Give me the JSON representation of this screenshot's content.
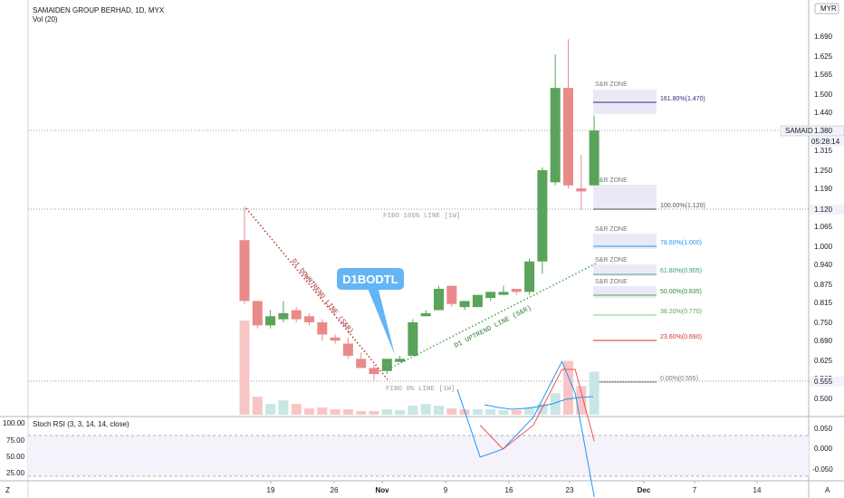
{
  "header": {
    "title": "SAMAIDEN GROUP BERHAD, 1D, MYX",
    "volume_label": "Vol (20)"
  },
  "axes": {
    "currency": "MYR",
    "time_code": "05:28:14",
    "ticker_tag": "SAMAID",
    "ticker_price": "1.380",
    "fibo_price_tag": "1.120",
    "low_price_tag": "0.555",
    "left_corner": "Z",
    "right_corner": "A",
    "y_ticks": [
      "1.690",
      "1.625",
      "1.565",
      "1.500",
      "1.440",
      "1.375",
      "1.315",
      "1.250",
      "1.190",
      "1.125",
      "1.065",
      "1.000",
      "0.940",
      "0.875",
      "0.815",
      "0.750",
      "0.690",
      "0.625",
      "0.565",
      "0.500"
    ],
    "x_ticks": [
      "19",
      "26",
      "Nov",
      "9",
      "16",
      "23",
      "Dec",
      "7",
      "14"
    ]
  },
  "rsi": {
    "label": "Stoch RSI (3, 3, 14, 14, close)",
    "left_ticks": [
      "100.00",
      "75.00",
      "50.00",
      "25.00"
    ],
    "right_ticks": [
      "0.050",
      "0.000",
      "-0.050"
    ]
  },
  "annotations": {
    "bubble": "D1BODTL",
    "downtrend": "D1 DOWNTREND LINE (S&R)",
    "uptrend": "D1 UPTREND LINE (S&R)",
    "fibo100": "FIBO 100% LINE [1W]",
    "fibo0": "FIBO 0% LINE [1W]",
    "zones": [
      "S&R ZONE",
      "S&R ZONE",
      "S&R ZONE",
      "S&R ZONE",
      "S&R ZONE"
    ]
  },
  "colors": {
    "up": "#59a35a",
    "down": "#e98a8a",
    "vol_up": "#c8e6e4",
    "vol_down": "#f8c5c5",
    "zone": "#ece9f7"
  },
  "chart_data": {
    "type": "candlestick",
    "title": "SAMAIDEN GROUP BERHAD, 1D, MYX",
    "ylim": [
      0.47,
      1.74
    ],
    "candles": [
      {
        "o": 1.02,
        "h": 1.13,
        "l": 0.81,
        "c": 0.82
      },
      {
        "o": 0.82,
        "h": 0.82,
        "l": 0.73,
        "c": 0.74
      },
      {
        "o": 0.74,
        "h": 0.79,
        "l": 0.73,
        "c": 0.77
      },
      {
        "o": 0.76,
        "h": 0.82,
        "l": 0.75,
        "c": 0.78
      },
      {
        "o": 0.79,
        "h": 0.8,
        "l": 0.75,
        "c": 0.76
      },
      {
        "o": 0.77,
        "h": 0.78,
        "l": 0.74,
        "c": 0.75
      },
      {
        "o": 0.75,
        "h": 0.76,
        "l": 0.69,
        "c": 0.71
      },
      {
        "o": 0.7,
        "h": 0.71,
        "l": 0.68,
        "c": 0.69
      },
      {
        "o": 0.68,
        "h": 0.7,
        "l": 0.63,
        "c": 0.64
      },
      {
        "o": 0.63,
        "h": 0.65,
        "l": 0.6,
        "c": 0.6
      },
      {
        "o": 0.6,
        "h": 0.61,
        "l": 0.56,
        "c": 0.58
      },
      {
        "o": 0.59,
        "h": 0.63,
        "l": 0.58,
        "c": 0.63
      },
      {
        "o": 0.62,
        "h": 0.64,
        "l": 0.62,
        "c": 0.63
      },
      {
        "o": 0.64,
        "h": 0.76,
        "l": 0.64,
        "c": 0.75
      },
      {
        "o": 0.77,
        "h": 0.79,
        "l": 0.77,
        "c": 0.78
      },
      {
        "o": 0.79,
        "h": 0.87,
        "l": 0.79,
        "c": 0.86
      },
      {
        "o": 0.87,
        "h": 0.87,
        "l": 0.8,
        "c": 0.81
      },
      {
        "o": 0.8,
        "h": 0.82,
        "l": 0.79,
        "c": 0.82
      },
      {
        "o": 0.8,
        "h": 0.84,
        "l": 0.8,
        "c": 0.84
      },
      {
        "o": 0.83,
        "h": 0.85,
        "l": 0.82,
        "c": 0.85
      },
      {
        "o": 0.84,
        "h": 0.87,
        "l": 0.84,
        "c": 0.85
      },
      {
        "o": 0.86,
        "h": 0.86,
        "l": 0.84,
        "c": 0.85
      },
      {
        "o": 0.85,
        "h": 0.96,
        "l": 0.84,
        "c": 0.95
      },
      {
        "o": 0.95,
        "h": 1.26,
        "l": 0.91,
        "c": 1.25
      },
      {
        "o": 1.21,
        "h": 1.63,
        "l": 1.2,
        "c": 1.52
      },
      {
        "o": 1.52,
        "h": 1.68,
        "l": 1.19,
        "c": 1.2
      },
      {
        "o": 1.19,
        "h": 1.3,
        "l": 1.12,
        "c": 1.18
      },
      {
        "o": 1.2,
        "h": 1.43,
        "l": 1.2,
        "c": 1.38
      }
    ],
    "volume_dir": [
      "d",
      "d",
      "u",
      "u",
      "d",
      "d",
      "d",
      "d",
      "d",
      "d",
      "d",
      "u",
      "u",
      "u",
      "u",
      "u",
      "d",
      "d",
      "u",
      "u",
      "u",
      "d",
      "u",
      "u",
      "u",
      "d",
      "d",
      "u"
    ],
    "volume": [
      105,
      20,
      12,
      16,
      12,
      7,
      8,
      6,
      6,
      4,
      4,
      6,
      5,
      10,
      12,
      10,
      7,
      6,
      6,
      6,
      5,
      5,
      8,
      12,
      24,
      60,
      32,
      48
    ],
    "stoch_k": [
      [
        0.0,
        0.15
      ],
      [
        1.2,
        -0.02
      ],
      [
        2.4,
        0.0
      ],
      [
        4.0,
        0.08
      ],
      [
        5.5,
        0.22
      ],
      [
        6.2,
        0.14
      ],
      [
        7.2,
        -0.12
      ]
    ],
    "stoch_d": [
      [
        1.2,
        0.06
      ],
      [
        2.4,
        0.0
      ],
      [
        4.0,
        0.06
      ],
      [
        5.5,
        0.2
      ],
      [
        6.2,
        0.2
      ],
      [
        7.2,
        0.02
      ]
    ]
  }
}
